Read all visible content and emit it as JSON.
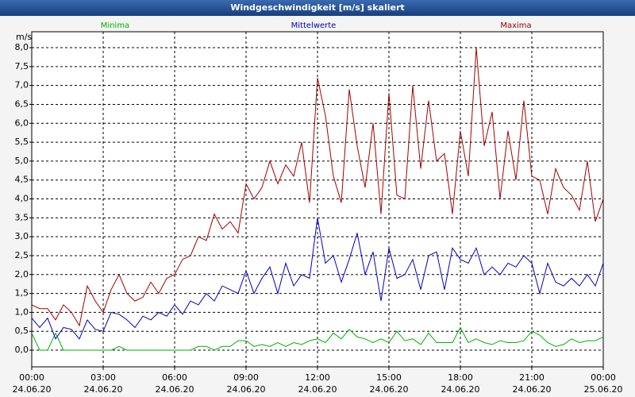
{
  "chart_data": {
    "type": "line",
    "title": "Windgeschwindigkeit [m/s] skaliert",
    "y_unit": "m/s",
    "x": [
      0,
      20,
      40,
      60,
      80,
      100,
      120,
      140,
      160,
      180,
      200,
      220,
      240,
      260,
      280,
      300,
      320,
      340,
      360,
      380,
      400,
      420,
      440,
      460,
      480,
      500,
      520,
      540,
      560,
      580,
      600,
      620,
      640,
      660,
      680,
      700,
      720,
      740,
      760,
      780,
      800,
      820,
      840,
      860,
      880,
      900,
      920,
      940,
      960,
      980,
      1000,
      1020,
      1040,
      1060,
      1080,
      1100,
      1120,
      1140,
      1160,
      1180,
      1200,
      1220,
      1240,
      1260,
      1280,
      1300,
      1320,
      1340,
      1360,
      1380,
      1400,
      1420,
      1440
    ],
    "series": [
      {
        "name": "Minima",
        "color": "#00b000",
        "values": [
          0.45,
          0,
          0,
          0.45,
          0,
          0,
          0,
          0,
          0,
          0,
          0,
          0.1,
          0,
          0,
          0,
          0,
          0,
          0,
          0,
          0,
          0,
          0.1,
          0.1,
          0,
          0.1,
          0.1,
          0.25,
          0.25,
          0.1,
          0.15,
          0.1,
          0.2,
          0.1,
          0.2,
          0.15,
          0.25,
          0.3,
          0.2,
          0.45,
          0.3,
          0.55,
          0.35,
          0.3,
          0.2,
          0.3,
          0.2,
          0.5,
          0.25,
          0.3,
          0.15,
          0.45,
          0.2,
          0.2,
          0.2,
          0.6,
          0.2,
          0.3,
          0.2,
          0.15,
          0.25,
          0.2,
          0.2,
          0.25,
          0.5,
          0.4,
          0.2,
          0.1,
          0.15,
          0.3,
          0.2,
          0.25,
          0.25,
          0.35
        ]
      },
      {
        "name": "Mittelwerte",
        "color": "#0000c0",
        "values": [
          0.85,
          0.6,
          0.85,
          0.3,
          0.6,
          0.55,
          0.3,
          0.8,
          0.55,
          0.5,
          1.0,
          0.95,
          0.8,
          0.6,
          0.9,
          0.8,
          1.0,
          0.9,
          1.2,
          0.95,
          1.3,
          1.2,
          1.5,
          1.3,
          1.7,
          1.6,
          1.5,
          2.1,
          1.5,
          1.9,
          2.2,
          1.5,
          2.3,
          1.7,
          2.0,
          1.9,
          3.5,
          2.3,
          2.5,
          1.8,
          2.4,
          3.1,
          2.0,
          2.6,
          1.3,
          2.7,
          1.9,
          2.0,
          2.4,
          1.6,
          2.5,
          2.6,
          1.6,
          2.7,
          2.4,
          2.3,
          2.7,
          2.0,
          2.2,
          2.0,
          2.3,
          2.2,
          2.5,
          2.3,
          1.5,
          2.3,
          1.8,
          1.7,
          1.9,
          1.7,
          2.0,
          1.7,
          2.3
        ]
      },
      {
        "name": "Maxima",
        "color": "#a00000",
        "values": [
          1.2,
          1.1,
          1.1,
          0.8,
          1.2,
          1.0,
          0.65,
          1.7,
          1.3,
          1.0,
          1.6,
          2.0,
          1.5,
          1.3,
          1.4,
          1.8,
          1.5,
          1.9,
          2.0,
          2.4,
          2.5,
          3.0,
          2.9,
          3.6,
          3.2,
          3.4,
          3.1,
          4.4,
          4.0,
          4.3,
          5.0,
          4.4,
          4.9,
          4.6,
          5.5,
          3.9,
          7.2,
          6.2,
          4.6,
          3.9,
          6.9,
          5.4,
          4.3,
          6.0,
          3.6,
          6.8,
          4.1,
          4.0,
          7.0,
          4.8,
          6.6,
          5.0,
          5.2,
          3.6,
          5.8,
          4.6,
          8.0,
          5.4,
          6.3,
          4.0,
          5.8,
          4.5,
          6.6,
          4.6,
          4.5,
          3.6,
          4.8,
          4.3,
          4.1,
          3.7,
          5.0,
          3.4,
          4.0
        ]
      }
    ],
    "xlim": [
      0,
      1440
    ],
    "xticks": [
      {
        "value": 0,
        "label": "00:00",
        "date": "24.06.20"
      },
      {
        "value": 180,
        "label": "03:00",
        "date": "24.06.20"
      },
      {
        "value": 360,
        "label": "06:00",
        "date": "24.06.20"
      },
      {
        "value": 540,
        "label": "09:00",
        "date": "24.06.20"
      },
      {
        "value": 720,
        "label": "12:00",
        "date": "24.06.20"
      },
      {
        "value": 900,
        "label": "15:00",
        "date": "24.06.20"
      },
      {
        "value": 1080,
        "label": "18:00",
        "date": "24.06.20"
      },
      {
        "value": 1260,
        "label": "21:00",
        "date": "24.06.20"
      },
      {
        "value": 1440,
        "label": "00:00",
        "date": "25.06.20"
      }
    ],
    "ylim": [
      -0.44,
      8.42
    ],
    "yticks": [
      {
        "value": 0,
        "label": "0,0"
      },
      {
        "value": 0.5,
        "label": "0,5"
      },
      {
        "value": 1,
        "label": "1,0"
      },
      {
        "value": 1.5,
        "label": "1,5"
      },
      {
        "value": 2,
        "label": "2,0"
      },
      {
        "value": 2.5,
        "label": "2,5"
      },
      {
        "value": 3,
        "label": "3,0"
      },
      {
        "value": 3.5,
        "label": "3,5"
      },
      {
        "value": 4,
        "label": "4,0"
      },
      {
        "value": 4.5,
        "label": "4,5"
      },
      {
        "value": 5,
        "label": "5,0"
      },
      {
        "value": 5.5,
        "label": "5,5"
      },
      {
        "value": 6,
        "label": "6,0"
      },
      {
        "value": 6.5,
        "label": "6,5"
      },
      {
        "value": 7,
        "label": "7,0"
      },
      {
        "value": 7.5,
        "label": "7,5"
      },
      {
        "value": 8,
        "label": "8,0"
      }
    ],
    "grid": true
  }
}
